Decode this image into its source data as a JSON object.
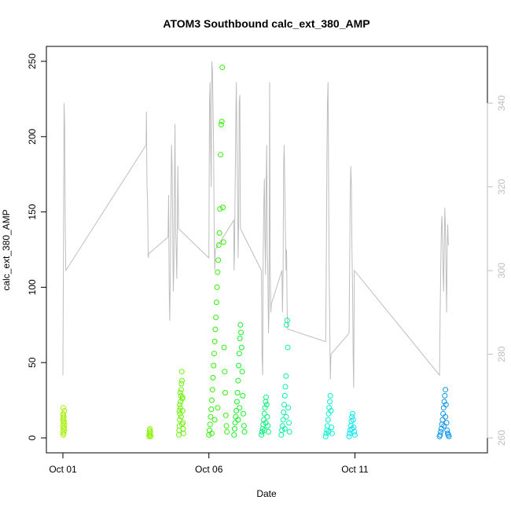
{
  "chart_data": {
    "type": "scatter",
    "title": "ATOM3 Southbound calc_ext_380_AMP",
    "xlabel": "Date",
    "ylabel": "calc_ext_380_AMP",
    "x_ticks": [
      "Oct 01",
      "Oct 06",
      "Oct 11"
    ],
    "x_tick_values": [
      1,
      6,
      11
    ],
    "xlim": [
      1,
      15
    ],
    "ylim": [
      0,
      250
    ],
    "y_ticks": [
      0,
      50,
      100,
      150,
      200,
      250
    ],
    "y2_ticks": [
      260,
      280,
      300,
      320,
      340
    ],
    "y2lim": [
      260,
      350
    ],
    "grid": false,
    "legend": "none",
    "colors": {
      "line": "#bebebe",
      "right_axis": "#bebebe",
      "axes": "#000000"
    },
    "scatter_series": [
      {
        "color": "#a6f00a",
        "points": [
          [
            1.0,
            4
          ],
          [
            1.0,
            8
          ],
          [
            1.0,
            12
          ],
          [
            1.01,
            16
          ],
          [
            1.01,
            20
          ],
          [
            1.01,
            2
          ],
          [
            1.02,
            6
          ],
          [
            1.02,
            10
          ],
          [
            1.03,
            14
          ],
          [
            1.03,
            3
          ],
          [
            1.04,
            7
          ],
          [
            1.04,
            11
          ],
          [
            1.05,
            5
          ],
          [
            1.05,
            9
          ],
          [
            1.05,
            18
          ],
          [
            1.02,
            13
          ],
          [
            1.01,
            15
          ]
        ]
      },
      {
        "color": "#8cf20a",
        "points": [
          [
            3.95,
            1
          ],
          [
            3.96,
            3
          ],
          [
            3.97,
            5
          ],
          [
            3.98,
            6
          ],
          [
            3.99,
            2
          ],
          [
            4.0,
            4
          ],
          [
            4.01,
            1
          ],
          [
            3.97,
            2
          ]
        ]
      },
      {
        "color": "#6ef20a",
        "points": [
          [
            4.97,
            2
          ],
          [
            4.98,
            5
          ],
          [
            4.99,
            8
          ],
          [
            5.0,
            12
          ],
          [
            5.01,
            16
          ],
          [
            5.02,
            20
          ],
          [
            5.03,
            24
          ],
          [
            5.04,
            28
          ],
          [
            5.05,
            32
          ],
          [
            5.06,
            36
          ],
          [
            5.07,
            44
          ],
          [
            5.08,
            38
          ],
          [
            5.09,
            26
          ],
          [
            5.1,
            18
          ],
          [
            5.11,
            10
          ],
          [
            5.12,
            6
          ],
          [
            5.13,
            3
          ],
          [
            5.0,
            22
          ],
          [
            5.02,
            30
          ],
          [
            5.05,
            14
          ],
          [
            4.99,
            18
          ],
          [
            5.08,
            9
          ],
          [
            5.1,
            27
          ]
        ]
      },
      {
        "color": "#32f00a",
        "points": [
          [
            6.0,
            2
          ],
          [
            6.02,
            5
          ],
          [
            6.04,
            9
          ],
          [
            6.06,
            14
          ],
          [
            6.08,
            19
          ],
          [
            6.1,
            25
          ],
          [
            6.12,
            32
          ],
          [
            6.14,
            40
          ],
          [
            6.16,
            48
          ],
          [
            6.18,
            56
          ],
          [
            6.2,
            64
          ],
          [
            6.22,
            72
          ],
          [
            6.24,
            80
          ],
          [
            6.26,
            90
          ],
          [
            6.28,
            100
          ],
          [
            6.3,
            110
          ],
          [
            6.32,
            118
          ],
          [
            6.34,
            128
          ],
          [
            6.36,
            136
          ],
          [
            6.38,
            152
          ],
          [
            6.4,
            188
          ],
          [
            6.42,
            208
          ],
          [
            6.44,
            210
          ],
          [
            6.46,
            246
          ],
          [
            6.48,
            153
          ],
          [
            6.5,
            130
          ],
          [
            6.52,
            60
          ],
          [
            6.54,
            44
          ],
          [
            6.56,
            30
          ],
          [
            6.58,
            15
          ],
          [
            6.6,
            8
          ],
          [
            6.62,
            4
          ],
          [
            6.1,
            3
          ],
          [
            6.2,
            12
          ],
          [
            6.3,
            20
          ]
        ]
      },
      {
        "color": "#14f028",
        "points": [
          [
            6.86,
            2
          ],
          [
            6.88,
            6
          ],
          [
            6.9,
            10
          ],
          [
            6.92,
            14
          ],
          [
            6.94,
            18
          ],
          [
            6.96,
            24
          ],
          [
            6.98,
            30
          ],
          [
            7.0,
            38
          ],
          [
            7.02,
            48
          ],
          [
            7.04,
            56
          ],
          [
            7.06,
            66
          ],
          [
            7.08,
            75
          ],
          [
            7.1,
            70
          ],
          [
            7.12,
            60
          ],
          [
            7.14,
            44
          ],
          [
            7.16,
            28
          ],
          [
            7.18,
            16
          ],
          [
            7.2,
            8
          ],
          [
            7.22,
            4
          ],
          [
            7.0,
            12
          ],
          [
            7.05,
            20
          ]
        ]
      },
      {
        "color": "#0af07a",
        "points": [
          [
            7.8,
            2
          ],
          [
            7.82,
            4
          ],
          [
            7.84,
            6
          ],
          [
            7.86,
            9
          ],
          [
            7.88,
            12
          ],
          [
            7.9,
            16
          ],
          [
            7.92,
            20
          ],
          [
            7.94,
            24
          ],
          [
            7.96,
            27
          ],
          [
            7.98,
            22
          ],
          [
            8.0,
            14
          ],
          [
            8.02,
            8
          ],
          [
            8.04,
            4
          ],
          [
            7.9,
            5
          ],
          [
            7.95,
            10
          ]
        ]
      },
      {
        "color": "#0af0a0",
        "points": [
          [
            8.48,
            2
          ],
          [
            8.5,
            5
          ],
          [
            8.52,
            8
          ],
          [
            8.54,
            12
          ],
          [
            8.56,
            17
          ],
          [
            8.58,
            22
          ],
          [
            8.6,
            28
          ],
          [
            8.62,
            34
          ],
          [
            8.64,
            41
          ],
          [
            8.66,
            75
          ],
          [
            8.68,
            78
          ],
          [
            8.7,
            60
          ],
          [
            8.72,
            20
          ],
          [
            8.74,
            10
          ],
          [
            8.76,
            4
          ],
          [
            8.6,
            6
          ],
          [
            8.65,
            14
          ]
        ]
      },
      {
        "color": "#0af0d2",
        "points": [
          [
            10.0,
            1
          ],
          [
            10.02,
            3
          ],
          [
            10.04,
            5
          ],
          [
            10.06,
            8
          ],
          [
            10.08,
            12
          ],
          [
            10.1,
            16
          ],
          [
            10.12,
            20
          ],
          [
            10.14,
            24
          ],
          [
            10.16,
            28
          ],
          [
            10.18,
            18
          ],
          [
            10.2,
            7
          ],
          [
            10.22,
            3
          ],
          [
            10.1,
            4
          ]
        ]
      },
      {
        "color": "#0ae6f0",
        "points": [
          [
            10.8,
            1
          ],
          [
            10.82,
            3
          ],
          [
            10.84,
            5
          ],
          [
            10.86,
            8
          ],
          [
            10.88,
            11
          ],
          [
            10.9,
            14
          ],
          [
            10.92,
            16
          ],
          [
            10.94,
            12
          ],
          [
            10.96,
            7
          ],
          [
            10.98,
            4
          ],
          [
            11.0,
            2
          ],
          [
            10.9,
            6
          ]
        ]
      },
      {
        "color": "#0a96f0",
        "points": [
          [
            13.9,
            1
          ],
          [
            13.92,
            2
          ],
          [
            13.94,
            4
          ],
          [
            13.96,
            6
          ],
          [
            13.98,
            9
          ],
          [
            14.0,
            12
          ],
          [
            14.02,
            16
          ],
          [
            14.04,
            20
          ],
          [
            14.06,
            24
          ],
          [
            14.08,
            28
          ],
          [
            14.1,
            32
          ],
          [
            14.12,
            22
          ],
          [
            14.14,
            10
          ],
          [
            14.16,
            5
          ],
          [
            14.18,
            3
          ],
          [
            14.2,
            2
          ],
          [
            14.22,
            1
          ],
          [
            14.05,
            8
          ],
          [
            14.1,
            14
          ]
        ]
      }
    ],
    "line_series": {
      "color": "#bebebe",
      "axis": "right",
      "points": [
        [
          1.0,
          275
        ],
        [
          1.02,
          305
        ],
        [
          1.04,
          340
        ],
        [
          1.06,
          335
        ],
        [
          1.08,
          310
        ],
        [
          1.1,
          300
        ],
        [
          3.85,
          330
        ],
        [
          3.86,
          338
        ],
        [
          3.88,
          320
        ],
        [
          3.9,
          317
        ],
        [
          3.92,
          303
        ],
        [
          3.94,
          304
        ],
        [
          4.6,
          308
        ],
        [
          4.62,
          318
        ],
        [
          4.64,
          296
        ],
        [
          4.66,
          288
        ],
        [
          4.68,
          300
        ],
        [
          4.7,
          316
        ],
        [
          4.72,
          330
        ],
        [
          4.74,
          325
        ],
        [
          4.76,
          310
        ],
        [
          4.78,
          295
        ],
        [
          4.8,
          300
        ],
        [
          4.82,
          320
        ],
        [
          4.84,
          335
        ],
        [
          4.86,
          310
        ],
        [
          4.88,
          305
        ],
        [
          4.9,
          298
        ],
        [
          4.92,
          312
        ],
        [
          4.94,
          325
        ],
        [
          4.96,
          310
        ],
        [
          6.0,
          303
        ],
        [
          6.02,
          340
        ],
        [
          6.04,
          345
        ],
        [
          6.06,
          330
        ],
        [
          6.08,
          320
        ],
        [
          6.1,
          350
        ],
        [
          6.12,
          348
        ],
        [
          6.14,
          340
        ],
        [
          6.16,
          330
        ],
        [
          6.18,
          310
        ],
        [
          6.2,
          300
        ],
        [
          6.22,
          305
        ],
        [
          6.85,
          312
        ],
        [
          6.86,
          300
        ],
        [
          6.88,
          305
        ],
        [
          6.9,
          320
        ],
        [
          6.92,
          335
        ],
        [
          6.94,
          345
        ],
        [
          6.96,
          330
        ],
        [
          6.98,
          320
        ],
        [
          7.0,
          303
        ],
        [
          7.02,
          312
        ],
        [
          7.04,
          340
        ],
        [
          7.06,
          342
        ],
        [
          7.08,
          310
        ],
        [
          7.8,
          300
        ],
        [
          7.82,
          280
        ],
        [
          7.84,
          275
        ],
        [
          7.86,
          305
        ],
        [
          7.88,
          315
        ],
        [
          7.9,
          322
        ],
        [
          7.92,
          308
        ],
        [
          7.94,
          299
        ],
        [
          7.96,
          320
        ],
        [
          7.98,
          330
        ],
        [
          8.0,
          305
        ],
        [
          8.02,
          300
        ],
        [
          8.04,
          285
        ],
        [
          8.06,
          290
        ],
        [
          8.08,
          345
        ],
        [
          8.1,
          300
        ],
        [
          8.12,
          290
        ],
        [
          8.14,
          292
        ],
        [
          8.5,
          300
        ],
        [
          8.52,
          290
        ],
        [
          8.54,
          300
        ],
        [
          8.56,
          325
        ],
        [
          8.58,
          330
        ],
        [
          8.6,
          320
        ],
        [
          8.62,
          310
        ],
        [
          8.64,
          300
        ],
        [
          8.66,
          305
        ],
        [
          8.68,
          290
        ],
        [
          8.7,
          286
        ],
        [
          10.0,
          283
        ],
        [
          10.02,
          300
        ],
        [
          10.04,
          325
        ],
        [
          10.06,
          340
        ],
        [
          10.08,
          345
        ],
        [
          10.1,
          320
        ],
        [
          10.12,
          300
        ],
        [
          10.14,
          285
        ],
        [
          10.16,
          274
        ],
        [
          10.18,
          280
        ],
        [
          10.8,
          285
        ],
        [
          10.82,
          300
        ],
        [
          10.84,
          318
        ],
        [
          10.86,
          325
        ],
        [
          10.88,
          320
        ],
        [
          10.9,
          305
        ],
        [
          10.92,
          295
        ],
        [
          10.94,
          280
        ],
        [
          10.96,
          272
        ],
        [
          10.98,
          300
        ],
        [
          13.9,
          275
        ],
        [
          13.92,
          290
        ],
        [
          13.94,
          300
        ],
        [
          13.96,
          310
        ],
        [
          13.98,
          313
        ],
        [
          14.0,
          308
        ],
        [
          14.02,
          300
        ],
        [
          14.04,
          295
        ],
        [
          14.06,
          306
        ],
        [
          14.08,
          315
        ],
        [
          14.1,
          310
        ],
        [
          14.12,
          300
        ],
        [
          14.14,
          290
        ],
        [
          14.16,
          305
        ],
        [
          14.18,
          311
        ],
        [
          14.2,
          306
        ]
      ]
    }
  }
}
